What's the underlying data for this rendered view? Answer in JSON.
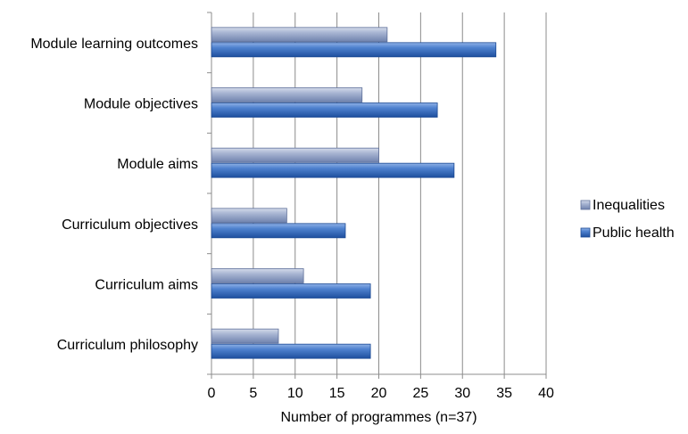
{
  "chart_data": {
    "type": "bar",
    "orientation": "horizontal",
    "title": "",
    "xlabel": "Number of programmes (n=37)",
    "ylabel": "",
    "xlim": [
      0,
      40
    ],
    "x_ticks": [
      0,
      5,
      10,
      15,
      20,
      25,
      30,
      35,
      40
    ],
    "grid": "vertical",
    "legend_position": "right",
    "categories": [
      "Module learning outcomes",
      "Module objectives",
      "Module aims",
      "Curriculum objectives",
      "Curriculum aims",
      "Curriculum philosophy"
    ],
    "series": [
      {
        "name": "Inequalities",
        "color": "#8e9fc4",
        "values": [
          21,
          18,
          20,
          9,
          11,
          8
        ]
      },
      {
        "name": "Public health",
        "color": "#3467b8",
        "values": [
          34,
          27,
          29,
          16,
          19,
          19
        ]
      }
    ]
  }
}
